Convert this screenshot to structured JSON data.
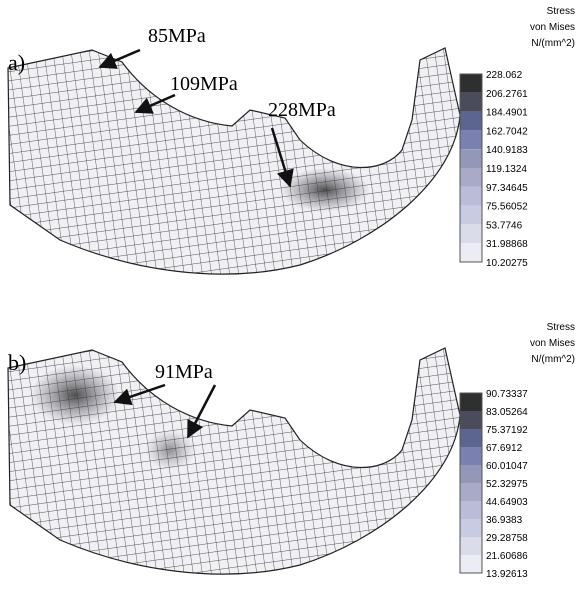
{
  "panels": [
    {
      "label": "a)",
      "annotations": [
        "85MPa",
        "109MPa",
        "228MPa"
      ],
      "legend": {
        "title": [
          "Stress",
          "von Mises",
          "N/(mm^2)"
        ],
        "values": [
          "228.062",
          "206.2761",
          "184.4901",
          "162.7042",
          "140.9183",
          "119.1324",
          "97.34645",
          "75.56052",
          "53.7746",
          "31.98868",
          "10.20275"
        ]
      }
    },
    {
      "label": "b)",
      "annotations": [
        "91MPa"
      ],
      "legend": {
        "title": [
          "Stress",
          "von Mises",
          "N/(mm^2)"
        ],
        "values": [
          "90.73337",
          "83.05264",
          "75.37192",
          "67.6912",
          "60.01047",
          "52.32975",
          "44.64903",
          "36.9383",
          "29.28758",
          "21.60686",
          "13.92613"
        ]
      }
    }
  ]
}
